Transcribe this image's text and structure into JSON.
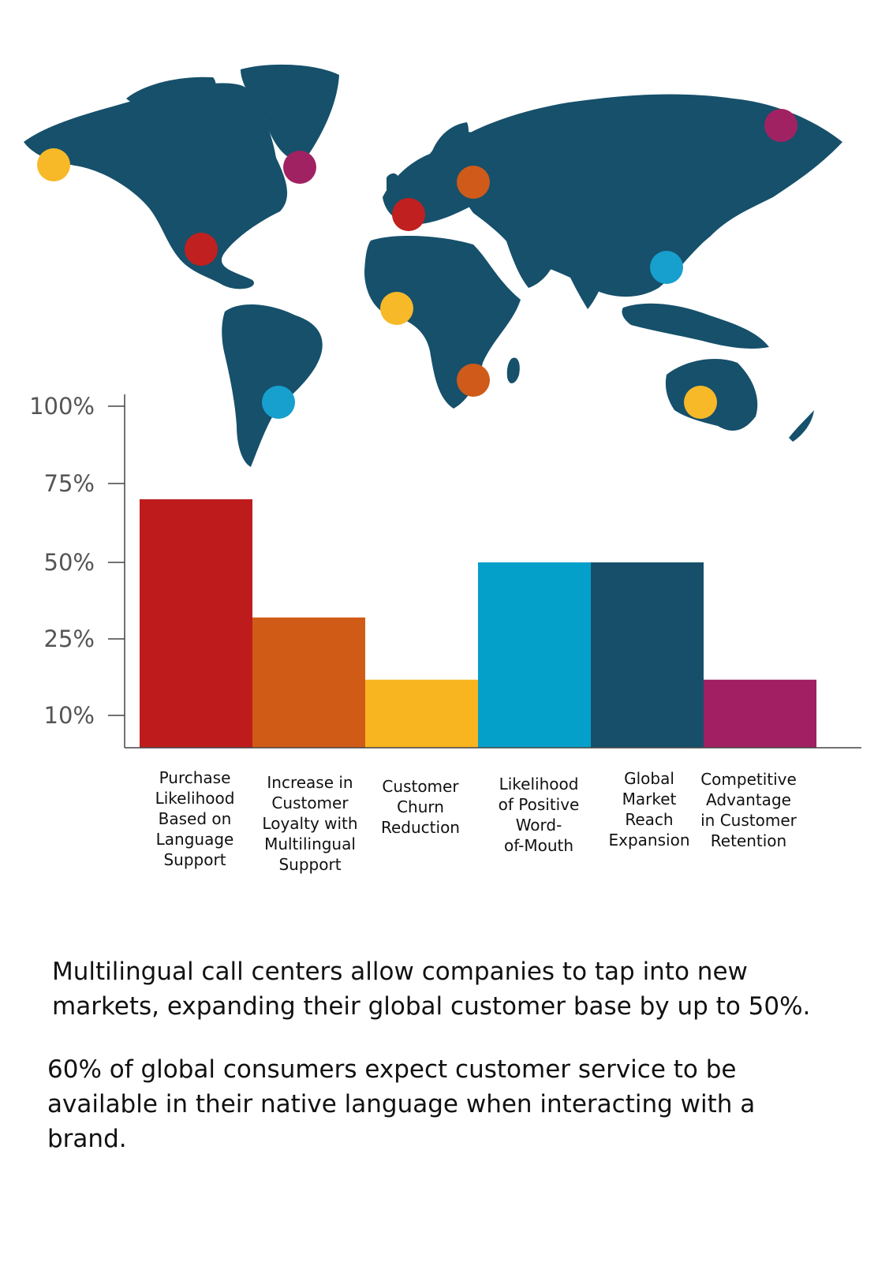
{
  "map": {
    "land_color": "#16506b",
    "markers": [
      {
        "region": "Alaska",
        "color": "#f7b928"
      },
      {
        "region": "Greenland",
        "color": "#a12262"
      },
      {
        "region": "North America",
        "color": "#c0201f"
      },
      {
        "region": "South America",
        "color": "#179fce"
      },
      {
        "region": "Western Europe",
        "color": "#c0201f"
      },
      {
        "region": "Eastern Europe",
        "color": "#cf5a1a"
      },
      {
        "region": "West Africa",
        "color": "#f7b928"
      },
      {
        "region": "Southern Africa",
        "color": "#cf5a1a"
      },
      {
        "region": "East Asia",
        "color": "#179fce"
      },
      {
        "region": "Siberia",
        "color": "#a12262"
      },
      {
        "region": "Australia",
        "color": "#f7b928"
      }
    ]
  },
  "chart_data": {
    "type": "bar",
    "title": "",
    "xlabel": "",
    "ylabel": "",
    "y_ticks": [
      "100%",
      "75%",
      "50%",
      "25%",
      "10%"
    ],
    "y_tick_values": [
      100,
      75,
      50,
      25,
      10
    ],
    "ylim": [
      0,
      110
    ],
    "grid": false,
    "categories": [
      [
        "Purchase",
        "Likelihood",
        "Based on",
        "Language",
        "Support"
      ],
      [
        "Increase in",
        "Customer",
        "Loyalty with",
        "Multilingual",
        "Support"
      ],
      [
        "Customer",
        "Churn",
        "Reduction"
      ],
      [
        "Likelihood",
        "of Positive",
        "Word-",
        "of-Mouth"
      ],
      [
        "Global",
        "Market",
        "Reach",
        "Expansion"
      ],
      [
        "Competitive",
        "Advantage",
        "in Customer",
        "Retention"
      ]
    ],
    "values": [
      70,
      32,
      17,
      50,
      50,
      17
    ],
    "colors": [
      "#be1c1c",
      "#d05b17",
      "#f8b51f",
      "#05a0c9",
      "#174f6b",
      "#a11f62"
    ]
  },
  "text": {
    "paragraph1": "Multilingual call centers allow companies to tap into new markets, expanding their global customer base by up to 50%.",
    "paragraph2": "60% of global consumers expect customer service to be available in their native language when interacting with a brand."
  }
}
